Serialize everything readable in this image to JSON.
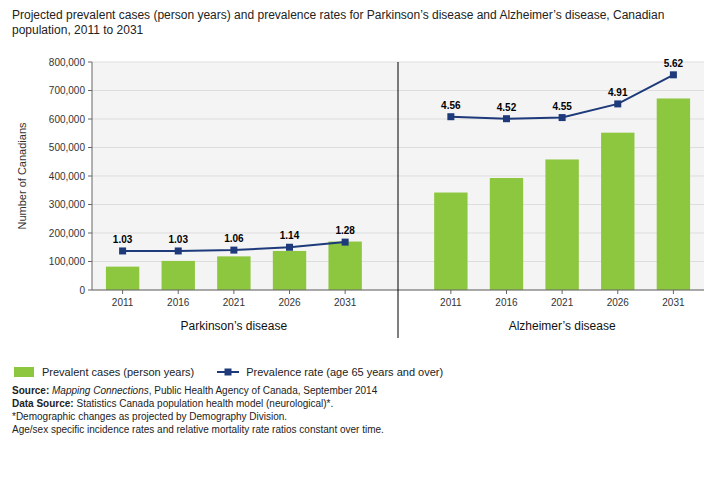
{
  "chart_data": {
    "type": "bar",
    "title": "Projected prevalent cases (person years) and prevalence rates for Parkinson’s disease and Alzheimer’s disease, Canadian population, 2011 to 2031",
    "ylabel": "Number of Canadians",
    "groups": [
      "Parkinson’s disease",
      "Alzheimer’s disease"
    ],
    "categories": [
      "2011",
      "2016",
      "2021",
      "2026",
      "2031"
    ],
    "series": [
      {
        "name": "Prevalent cases (person years)",
        "type": "bar",
        "color": "#8dc63f",
        "values": [
          [
            82000,
            102000,
            118000,
            137000,
            170000
          ],
          [
            342000,
            393000,
            458000,
            552000,
            672000
          ]
        ]
      },
      {
        "name": "Prevalence rate (age 65 years and over)",
        "type": "line",
        "color": "#1e3a7a",
        "marker": "square",
        "values": [
          [
            137000,
            137000,
            140000,
            150000,
            168000
          ],
          [
            608000,
            601000,
            605000,
            653000,
            755000
          ]
        ],
        "annotations": [
          [
            "1.03",
            "1.03",
            "1.06",
            "1.14",
            "1.28"
          ],
          [
            "4.56",
            "4.52",
            "4.55",
            "4.91",
            "5.62"
          ]
        ]
      }
    ],
    "ylim": [
      0,
      800000
    ],
    "yticks": [
      0,
      {
        "value": 100000,
        "label": "100,000"
      },
      {
        "value": 200000,
        "label": "200,000"
      },
      {
        "value": 300000,
        "label": "300,000"
      },
      {
        "value": 400000,
        "label": "400,000"
      },
      {
        "value": 500000,
        "label": "500,000"
      },
      {
        "value": 600000,
        "label": "600,000"
      },
      {
        "value": 700000,
        "label": "700,000"
      },
      {
        "value": 800000,
        "label": "800,000"
      }
    ],
    "grid": true,
    "legend": "bottom",
    "source": {
      "label": "Source: ",
      "title": "Mapping Connections",
      "text": ", Public Health Agency of Canada, September 2014"
    },
    "data_source": {
      "label": "Data Source: ",
      "text": "Statistics Canada population health model (neurological)*."
    },
    "footnotes": [
      "*Demographic changes as projected by Demography Division.",
      "Age/sex specific incidence rates and relative mortality rate ratios constant over time."
    ]
  }
}
